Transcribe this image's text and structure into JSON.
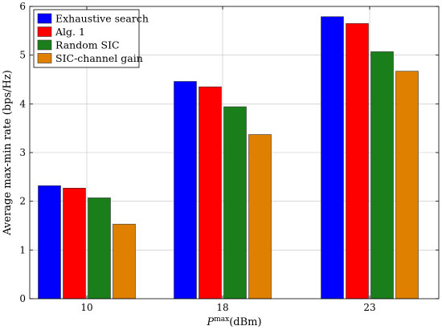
{
  "chart_data": {
    "type": "bar",
    "categories": [
      "10",
      "18",
      "23"
    ],
    "series": [
      {
        "name": "Exhaustive search",
        "values": [
          2.32,
          4.46,
          5.79
        ],
        "color": "#0000ff"
      },
      {
        "name": "Alg. 1",
        "values": [
          2.27,
          4.35,
          5.65
        ],
        "color": "#ff0000"
      },
      {
        "name": "Random SIC",
        "values": [
          2.07,
          3.94,
          5.07
        ],
        "color": "#1a7f1a"
      },
      {
        "name": "SIC-channel gain",
        "values": [
          1.53,
          3.37,
          4.67
        ],
        "color": "#df8000"
      }
    ],
    "xlabel_main": "P",
    "xlabel_sup": "max",
    "xlabel_unit": "(dBm)",
    "ylabel": "Average max-min rate (bps/Hz)",
    "ylim": [
      0,
      6
    ],
    "yticks": [
      "0",
      "1",
      "2",
      "3",
      "4",
      "5",
      "6"
    ],
    "grid": true,
    "legend_position": "top-left"
  }
}
